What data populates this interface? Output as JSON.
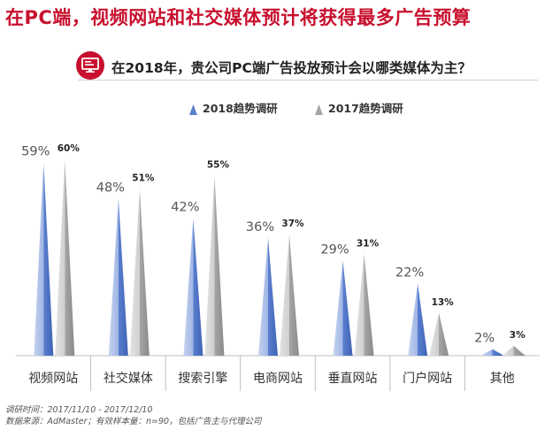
{
  "header": {
    "title": "在PC端，视频网站和社交媒体预计将获得最多广告预算",
    "question": "在2018年，贵公司PC端广告投放预计会以哪类媒体为主？",
    "question_icon": "monitor-icon"
  },
  "colors": {
    "brand_red": "#c8102e",
    "series_2018": "#5b7fcf",
    "series_2017": "#a6a6a6"
  },
  "chart_data": {
    "type": "bar",
    "categories": [
      "视频网站",
      "社交媒体",
      "搜索引擎",
      "电商网站",
      "垂直网站",
      "门户网站",
      "其他"
    ],
    "series": [
      {
        "name": "2018趋势调研",
        "values": [
          59,
          48,
          42,
          36,
          29,
          22,
          2
        ],
        "labels": [
          "59%",
          "48%",
          "42%",
          "36%",
          "29%",
          "22%",
          "2%"
        ]
      },
      {
        "name": "2017趋势调研",
        "values": [
          60,
          51,
          55,
          37,
          31,
          13,
          3
        ],
        "labels": [
          "60%",
          "51%",
          "55%",
          "37%",
          "31%",
          "13%",
          "3%"
        ]
      }
    ],
    "ylim": [
      0,
      60
    ],
    "grid": false,
    "legend_position": "top"
  },
  "footnotes": {
    "line1": "调研时间：2017/11/10 - 2017/12/10",
    "line2": "数据来源：AdMaster；有效样本量：n=90，包括广告主与代理公司"
  }
}
